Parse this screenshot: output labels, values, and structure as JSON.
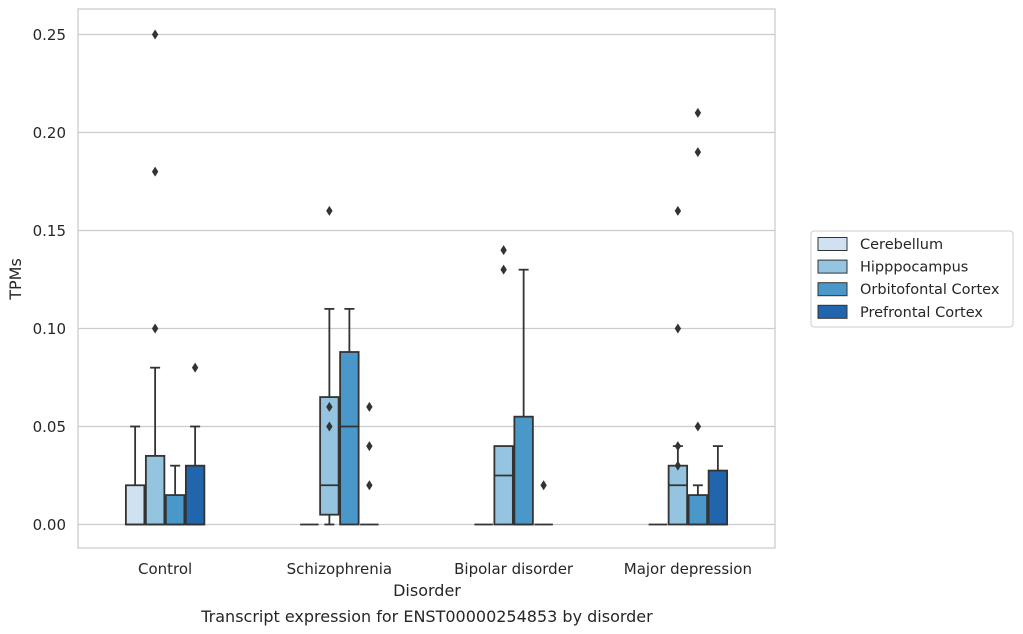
{
  "chart_data": {
    "type": "box",
    "caption": "Transcript expression for ENST00000254853 by disorder",
    "xlabel": "Disorder",
    "ylabel": "TPMs",
    "ylim": [
      -0.012,
      0.263
    ],
    "yticks": [
      0.0,
      0.05,
      0.1,
      0.15,
      0.2,
      0.25
    ],
    "ytick_labels": [
      "0.00",
      "0.05",
      "0.10",
      "0.15",
      "0.20",
      "0.25"
    ],
    "grid": "horizontal",
    "legend_position": "right",
    "categories": [
      "Control",
      "Schizophrenia",
      "Bipolar disorder",
      "Major depression"
    ],
    "series": [
      {
        "name": "Cerebellum",
        "color": "#d0e1f2",
        "boxes": [
          {
            "whisker_low": 0.0,
            "q1": 0.0,
            "median": 0.0,
            "q3": 0.02,
            "whisker_high": 0.05,
            "outliers": []
          },
          {
            "whisker_low": 0.0,
            "q1": 0.0,
            "median": 0.0,
            "q3": 0.0,
            "whisker_high": 0.0,
            "outliers": []
          },
          {
            "whisker_low": 0.0,
            "q1": 0.0,
            "median": 0.0,
            "q3": 0.0,
            "whisker_high": 0.0,
            "outliers": []
          },
          {
            "whisker_low": 0.0,
            "q1": 0.0,
            "median": 0.0,
            "q3": 0.0,
            "whisker_high": 0.0,
            "outliers": []
          }
        ]
      },
      {
        "name": "Hipppocampus",
        "color": "#94c4df",
        "boxes": [
          {
            "whisker_low": 0.0,
            "q1": 0.0,
            "median": 0.0,
            "q3": 0.035,
            "whisker_high": 0.08,
            "outliers": [
              0.1,
              0.18,
              0.25
            ]
          },
          {
            "whisker_low": 0.0,
            "q1": 0.005,
            "median": 0.02,
            "q3": 0.065,
            "whisker_high": 0.11,
            "outliers": [
              0.05,
              0.06,
              0.16
            ]
          },
          {
            "whisker_low": 0.0,
            "q1": 0.0,
            "median": 0.025,
            "q3": 0.04,
            "whisker_high": 0.04,
            "outliers": [
              0.13,
              0.14
            ]
          },
          {
            "whisker_low": 0.0,
            "q1": 0.0,
            "median": 0.02,
            "q3": 0.03,
            "whisker_high": 0.04,
            "outliers": [
              0.03,
              0.04,
              0.1,
              0.16
            ]
          }
        ]
      },
      {
        "name": "Orbitofontal Cortex",
        "color": "#4a98c9",
        "boxes": [
          {
            "whisker_low": 0.0,
            "q1": 0.0,
            "median": 0.0,
            "q3": 0.015,
            "whisker_high": 0.03,
            "outliers": []
          },
          {
            "whisker_low": 0.0,
            "q1": 0.0,
            "median": 0.05,
            "q3": 0.088,
            "whisker_high": 0.11,
            "outliers": []
          },
          {
            "whisker_low": 0.0,
            "q1": 0.0,
            "median": 0.0,
            "q3": 0.055,
            "whisker_high": 0.13,
            "outliers": []
          },
          {
            "whisker_low": 0.0,
            "q1": 0.0,
            "median": 0.0,
            "q3": 0.015,
            "whisker_high": 0.02,
            "outliers": [
              0.05,
              0.19,
              0.21
            ]
          }
        ]
      },
      {
        "name": "Prefrontal Cortex",
        "color": "#2166ac",
        "boxes": [
          {
            "whisker_low": 0.0,
            "q1": 0.0,
            "median": 0.0,
            "q3": 0.03,
            "whisker_high": 0.05,
            "outliers": [
              0.08
            ]
          },
          {
            "whisker_low": 0.0,
            "q1": 0.0,
            "median": 0.0,
            "q3": 0.0,
            "whisker_high": 0.0,
            "outliers": [
              0.02,
              0.04,
              0.06
            ]
          },
          {
            "whisker_low": 0.0,
            "q1": 0.0,
            "median": 0.0,
            "q3": 0.0,
            "whisker_high": 0.0,
            "outliers": [
              0.02
            ]
          },
          {
            "whisker_low": 0.0,
            "q1": 0.0,
            "median": 0.0,
            "q3": 0.0275,
            "whisker_high": 0.04,
            "outliers": []
          }
        ]
      }
    ]
  }
}
